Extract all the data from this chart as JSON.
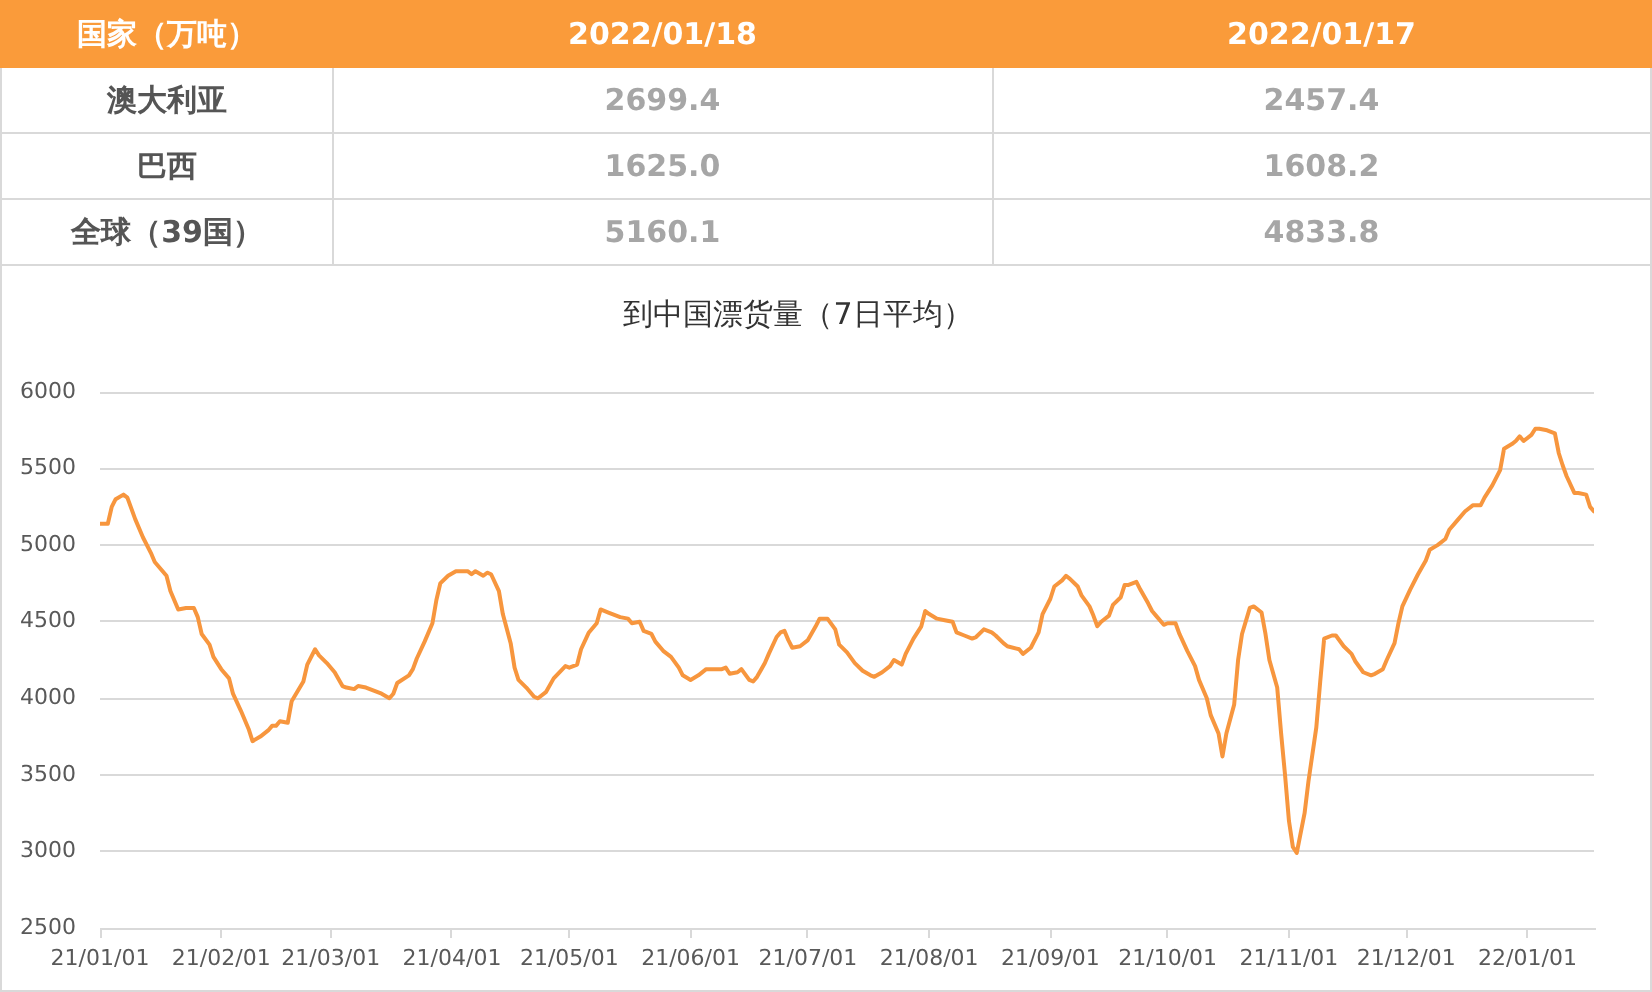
{
  "chart_data": [
    {
      "type": "other",
      "ylabel": "国家（万吨）",
      "categories": [
        "澳大利亚",
        "巴西",
        "全球（39国）"
      ],
      "series": [
        {
          "name": "2022/01/18",
          "values": [
            2699.4,
            1625.0,
            5160.1
          ],
          "value_labels": [
            "2699.4",
            "1625.0",
            "5160.1"
          ]
        },
        {
          "name": "2022/01/17",
          "values": [
            2457.4,
            1608.2,
            4833.8
          ],
          "value_labels": [
            "2457.4",
            "1608.2",
            "4833.8"
          ]
        }
      ]
    },
    {
      "type": "line",
      "title": "到中国漂货量（7日平均）",
      "color": "#f7963e",
      "grid": "y",
      "marker": "none",
      "xlim": [
        "2021-01-01",
        "2022-01-18"
      ],
      "xticks": [
        {
          "value": "2021-01-01",
          "label": "21/01/01"
        },
        {
          "value": "2021-02-01",
          "label": "21/02/01"
        },
        {
          "value": "2021-03-01",
          "label": "21/03/01"
        },
        {
          "value": "2021-04-01",
          "label": "21/04/01"
        },
        {
          "value": "2021-05-01",
          "label": "21/05/01"
        },
        {
          "value": "2021-06-01",
          "label": "21/06/01"
        },
        {
          "value": "2021-07-01",
          "label": "21/07/01"
        },
        {
          "value": "2021-08-01",
          "label": "21/08/01"
        },
        {
          "value": "2021-09-01",
          "label": "21/09/01"
        },
        {
          "value": "2021-10-01",
          "label": "21/10/01"
        },
        {
          "value": "2021-11-01",
          "label": "21/11/01"
        },
        {
          "value": "2021-12-01",
          "label": "21/12/01"
        },
        {
          "value": "2022-01-01",
          "label": "22/01/01"
        }
      ],
      "ylim": [
        2500,
        6000
      ],
      "yticks": [
        2500,
        3000,
        3500,
        4000,
        4500,
        5000,
        5500,
        6000
      ],
      "x": [
        "2021-01-01",
        "2021-01-03",
        "2021-01-04",
        "2021-01-05",
        "2021-01-07",
        "2021-01-08",
        "2021-01-09",
        "2021-01-10",
        "2021-01-12",
        "2021-01-14",
        "2021-01-15",
        "2021-01-18",
        "2021-01-19",
        "2021-01-20",
        "2021-01-21",
        "2021-01-23",
        "2021-01-25",
        "2021-01-26",
        "2021-01-27",
        "2021-01-29",
        "2021-01-30",
        "2021-02-01",
        "2021-02-03",
        "2021-02-04",
        "2021-02-06",
        "2021-02-08",
        "2021-02-09",
        "2021-02-11",
        "2021-02-13",
        "2021-02-14",
        "2021-02-15",
        "2021-02-16",
        "2021-02-18",
        "2021-02-19",
        "2021-02-22",
        "2021-02-23",
        "2021-02-25",
        "2021-02-26",
        "2021-02-28",
        "2021-03-02",
        "2021-03-04",
        "2021-03-05",
        "2021-03-07",
        "2021-03-08",
        "2021-03-10",
        "2021-03-12",
        "2021-03-14",
        "2021-03-16",
        "2021-03-17",
        "2021-03-18",
        "2021-03-21",
        "2021-03-22",
        "2021-03-23",
        "2021-03-25",
        "2021-03-27",
        "2021-03-28",
        "2021-03-29",
        "2021-03-31",
        "2021-04-02",
        "2021-04-03",
        "2021-04-05",
        "2021-04-06",
        "2021-04-07",
        "2021-04-09",
        "2021-04-10",
        "2021-04-11",
        "2021-04-13",
        "2021-04-14",
        "2021-04-16",
        "2021-04-17",
        "2021-04-18",
        "2021-04-20",
        "2021-04-22",
        "2021-04-23",
        "2021-04-25",
        "2021-04-27",
        "2021-04-30",
        "2021-05-01",
        "2021-05-03",
        "2021-05-04",
        "2021-05-06",
        "2021-05-08",
        "2021-05-09",
        "2021-05-11",
        "2021-05-12",
        "2021-05-14",
        "2021-05-16",
        "2021-05-17",
        "2021-05-19",
        "2021-05-20",
        "2021-05-22",
        "2021-05-23",
        "2021-05-25",
        "2021-05-27",
        "2021-05-29",
        "2021-05-30",
        "2021-06-01",
        "2021-06-03",
        "2021-06-05",
        "2021-06-07",
        "2021-06-09",
        "2021-06-10",
        "2021-06-11",
        "2021-06-13",
        "2021-06-14",
        "2021-06-16",
        "2021-06-17",
        "2021-06-18",
        "2021-06-20",
        "2021-06-21",
        "2021-06-23",
        "2021-06-24",
        "2021-06-25",
        "2021-06-26",
        "2021-06-27",
        "2021-06-29",
        "2021-07-01",
        "2021-07-03",
        "2021-07-04",
        "2021-07-06",
        "2021-07-08",
        "2021-07-09",
        "2021-07-11",
        "2021-07-13",
        "2021-07-15",
        "2021-07-17",
        "2021-07-18",
        "2021-07-20",
        "2021-07-22",
        "2021-07-23",
        "2021-07-25",
        "2021-07-26",
        "2021-07-28",
        "2021-07-30",
        "2021-07-31",
        "2021-08-01",
        "2021-08-03",
        "2021-08-05",
        "2021-08-07",
        "2021-08-08",
        "2021-08-10",
        "2021-08-12",
        "2021-08-13",
        "2021-08-15",
        "2021-08-17",
        "2021-08-18",
        "2021-08-20",
        "2021-08-21",
        "2021-08-24",
        "2021-08-25",
        "2021-08-27",
        "2021-08-29",
        "2021-08-30",
        "2021-09-01",
        "2021-09-02",
        "2021-09-04",
        "2021-09-05",
        "2021-09-06",
        "2021-09-08",
        "2021-09-09",
        "2021-09-11",
        "2021-09-12",
        "2021-09-13",
        "2021-09-14",
        "2021-09-16",
        "2021-09-17",
        "2021-09-19",
        "2021-09-20",
        "2021-09-21",
        "2021-09-23",
        "2021-09-24",
        "2021-09-26",
        "2021-09-27",
        "2021-09-28",
        "2021-09-30",
        "2021-10-01",
        "2021-10-03",
        "2021-10-04",
        "2021-10-06",
        "2021-10-08",
        "2021-10-09",
        "2021-10-11",
        "2021-10-12",
        "2021-10-14",
        "2021-10-15",
        "2021-10-16",
        "2021-10-18",
        "2021-10-19",
        "2021-10-20",
        "2021-10-22",
        "2021-10-23",
        "2021-10-25",
        "2021-10-26",
        "2021-10-27",
        "2021-10-29",
        "2021-10-30",
        "2021-10-31",
        "2021-11-01",
        "2021-11-02",
        "2021-11-03",
        "2021-11-05",
        "2021-11-06",
        "2021-11-08",
        "2021-11-09",
        "2021-11-10",
        "2021-11-12",
        "2021-11-13",
        "2021-11-15",
        "2021-11-17",
        "2021-11-18",
        "2021-11-20",
        "2021-11-22",
        "2021-11-23",
        "2021-11-25",
        "2021-11-26",
        "2021-11-28",
        "2021-11-29",
        "2021-11-30",
        "2021-12-02",
        "2021-12-04",
        "2021-12-06",
        "2021-12-07",
        "2021-12-09",
        "2021-12-11",
        "2021-12-12",
        "2021-12-14",
        "2021-12-16",
        "2021-12-18",
        "2021-12-20",
        "2021-12-21",
        "2021-12-23",
        "2021-12-25",
        "2021-12-26",
        "2021-12-28",
        "2021-12-29",
        "2021-12-30",
        "2021-12-31",
        "2022-01-02",
        "2022-01-03",
        "2022-01-04",
        "2022-01-06",
        "2022-01-08",
        "2022-01-09",
        "2022-01-10",
        "2022-01-11",
        "2022-01-13",
        "2022-01-14",
        "2022-01-16",
        "2022-01-17",
        "2022-01-18"
      ],
      "values": [
        5140,
        5140,
        5250,
        5300,
        5330,
        5310,
        5240,
        5170,
        5050,
        4950,
        4890,
        4800,
        4700,
        4640,
        4580,
        4590,
        4590,
        4530,
        4420,
        4350,
        4270,
        4190,
        4130,
        4030,
        3920,
        3800,
        3720,
        3750,
        3790,
        3820,
        3820,
        3850,
        3840,
        3980,
        4110,
        4220,
        4320,
        4280,
        4230,
        4170,
        4080,
        4070,
        4060,
        4080,
        4070,
        4050,
        4030,
        4000,
        4030,
        4100,
        4150,
        4190,
        4260,
        4370,
        4490,
        4640,
        4750,
        4800,
        4830,
        4830,
        4830,
        4810,
        4830,
        4800,
        4820,
        4810,
        4700,
        4550,
        4360,
        4200,
        4120,
        4070,
        4010,
        4000,
        4040,
        4130,
        4210,
        4200,
        4220,
        4320,
        4430,
        4490,
        4580,
        4560,
        4550,
        4530,
        4520,
        4490,
        4500,
        4440,
        4420,
        4370,
        4310,
        4270,
        4200,
        4150,
        4120,
        4150,
        4190,
        4190,
        4190,
        4200,
        4160,
        4170,
        4190,
        4120,
        4110,
        4140,
        4230,
        4290,
        4400,
        4430,
        4440,
        4380,
        4330,
        4340,
        4380,
        4470,
        4520,
        4520,
        4450,
        4350,
        4300,
        4230,
        4180,
        4150,
        4140,
        4170,
        4210,
        4250,
        4220,
        4290,
        4390,
        4470,
        4570,
        4550,
        4520,
        4510,
        4500,
        4430,
        4410,
        4390,
        4400,
        4450,
        4430,
        4410,
        4360,
        4340,
        4320,
        4290,
        4330,
        4430,
        4550,
        4650,
        4730,
        4770,
        4800,
        4780,
        4730,
        4670,
        4600,
        4540,
        4470,
        4500,
        4540,
        4610,
        4660,
        4740,
        4740,
        4760,
        4710,
        4620,
        4570,
        4540,
        4480,
        4490,
        4490,
        4420,
        4310,
        4210,
        4120,
        4000,
        3890,
        3770,
        3620,
        3770,
        3960,
        4250,
        4420,
        4590,
        4600,
        4560,
        4420,
        4250,
        4070,
        3770,
        3500,
        3200,
        3030,
        2990,
        3250,
        3460,
        3810,
        4110,
        4390,
        4410,
        4410,
        4340,
        4290,
        4240,
        4170,
        4150,
        4160,
        4190,
        4250,
        4360,
        4490,
        4600,
        4710,
        4810,
        4900,
        4970,
        5000,
        5040,
        5100,
        5160,
        5220,
        5260,
        5260,
        5310,
        5390,
        5490,
        5630,
        5660,
        5680,
        5710,
        5680,
        5720,
        5760,
        5760,
        5750,
        5730,
        5600,
        5520,
        5450,
        5340,
        5340,
        5330,
        5250,
        5220
      ]
    }
  ]
}
